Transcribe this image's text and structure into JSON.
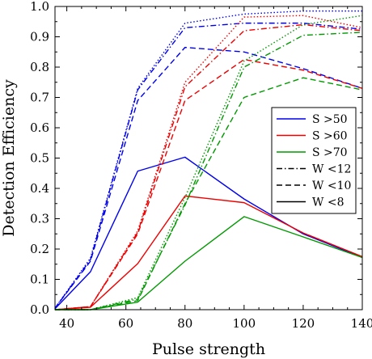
{
  "chart_data": {
    "type": "line",
    "title": "",
    "xlabel": "Pulse strength",
    "ylabel": "Detection Efficiency",
    "xlim": [
      36,
      140
    ],
    "ylim": [
      0,
      1.0
    ],
    "x_ticks": [
      40,
      60,
      80,
      100,
      120,
      140
    ],
    "y_ticks": [
      0.0,
      0.1,
      0.2,
      0.3,
      0.4,
      0.5,
      0.6,
      0.7,
      0.8,
      0.9,
      1.0
    ],
    "x_tick_labels": [
      "40",
      "60",
      "80",
      "100",
      "120",
      "140"
    ],
    "y_tick_labels": [
      "0.0",
      "0.1",
      "0.2",
      "0.3",
      "0.4",
      "0.5",
      "0.6",
      "0.7",
      "0.8",
      "0.9",
      "1.0"
    ],
    "legend_position": "right",
    "grid": false,
    "x": [
      36,
      48,
      64,
      80,
      100,
      120,
      140
    ],
    "series": [
      {
        "name": "S >50",
        "width": "W <12",
        "color": "#0000ee",
        "dash": "dashdot",
        "values": [
          0.005,
          0.165,
          0.725,
          0.93,
          0.945,
          0.945,
          0.925
        ]
      },
      {
        "name": "S >50",
        "width": "W <12",
        "color": "#0000ee",
        "dash": "dotted",
        "values": [
          0.005,
          0.17,
          0.73,
          0.945,
          0.975,
          0.985,
          0.985
        ]
      },
      {
        "name": "S >50",
        "width": "W <10",
        "color": "#0000ee",
        "dash": "dashed",
        "values": [
          0.005,
          0.16,
          0.69,
          0.865,
          0.85,
          0.795,
          0.73
        ]
      },
      {
        "name": "S >50",
        "width": "W <8",
        "color": "#0000ee",
        "dash": "solid",
        "values": [
          0.003,
          0.125,
          0.457,
          0.503,
          0.365,
          0.25,
          0.172
        ]
      },
      {
        "name": "S >60",
        "width": "W <12",
        "color": "#ee0000",
        "dash": "dotted",
        "values": [
          0.0,
          0.01,
          0.26,
          0.75,
          0.965,
          0.97,
          0.93
        ]
      },
      {
        "name": "S >60",
        "width": "W <12",
        "color": "#ee0000",
        "dash": "dashdot",
        "values": [
          0.0,
          0.01,
          0.255,
          0.735,
          0.92,
          0.94,
          0.92
        ]
      },
      {
        "name": "S >60",
        "width": "W <10",
        "color": "#ee0000",
        "dash": "dashed",
        "values": [
          0.0,
          0.01,
          0.25,
          0.69,
          0.825,
          0.79,
          0.73
        ]
      },
      {
        "name": "S >60",
        "width": "W <8",
        "color": "#ee0000",
        "dash": "solid",
        "values": [
          0.0,
          0.008,
          0.152,
          0.375,
          0.353,
          0.253,
          0.175
        ]
      },
      {
        "name": "S >70",
        "width": "W <12",
        "color": "#009900",
        "dash": "dotted",
        "values": [
          0.0,
          0.0,
          0.04,
          0.37,
          0.82,
          0.94,
          0.97
        ]
      },
      {
        "name": "S >70",
        "width": "W <12",
        "color": "#009900",
        "dash": "dashdot",
        "values": [
          0.0,
          0.0,
          0.035,
          0.345,
          0.8,
          0.905,
          0.915
        ]
      },
      {
        "name": "S >70",
        "width": "W <10",
        "color": "#009900",
        "dash": "dashed",
        "values": [
          0.0,
          0.0,
          0.03,
          0.35,
          0.7,
          0.765,
          0.725
        ]
      },
      {
        "name": "S >70",
        "width": "W <8",
        "color": "#009900",
        "dash": "solid",
        "values": [
          0.0,
          0.0,
          0.025,
          0.16,
          0.307,
          0.24,
          0.172
        ]
      }
    ],
    "legend": [
      {
        "label": "S >50",
        "color": "#0000ee",
        "dash": "solid"
      },
      {
        "label": "S >60",
        "color": "#ee0000",
        "dash": "solid"
      },
      {
        "label": "S >70",
        "color": "#009900",
        "dash": "solid"
      },
      {
        "label": "W <12",
        "color": "#000000",
        "dash": "dashdot"
      },
      {
        "label": "W <10",
        "color": "#000000",
        "dash": "dashed"
      },
      {
        "label": "W <8",
        "color": "#000000",
        "dash": "solid"
      }
    ]
  }
}
